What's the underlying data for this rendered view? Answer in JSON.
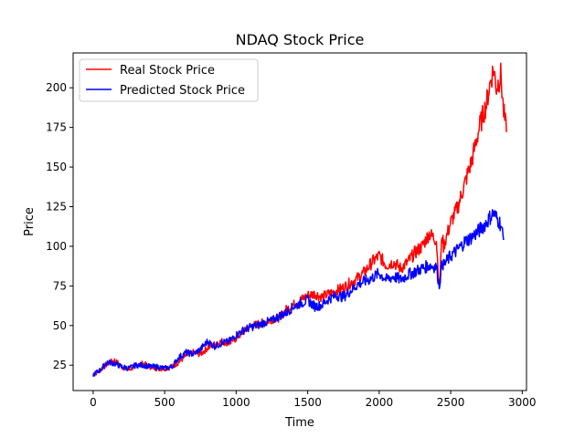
{
  "chart_data": {
    "type": "line",
    "title": "NDAQ Stock Price",
    "xlabel": "Time",
    "ylabel": "Price",
    "xlim": [
      -140,
      3030
    ],
    "ylim": [
      9,
      222
    ],
    "x_ticks": [
      0,
      500,
      1000,
      1500,
      2000,
      2500,
      3000
    ],
    "y_ticks": [
      25,
      50,
      75,
      100,
      125,
      150,
      175,
      200
    ],
    "grid": false,
    "legend_position": "top-left",
    "series": [
      {
        "name": "Real Stock Price",
        "color": "#ff0000",
        "x": [
          0,
          50,
          100,
          150,
          200,
          250,
          300,
          350,
          400,
          450,
          500,
          550,
          600,
          650,
          700,
          750,
          800,
          850,
          900,
          950,
          1000,
          1050,
          1100,
          1150,
          1200,
          1250,
          1300,
          1350,
          1400,
          1450,
          1500,
          1550,
          1600,
          1650,
          1700,
          1750,
          1800,
          1850,
          1900,
          1950,
          2000,
          2050,
          2100,
          2150,
          2200,
          2250,
          2300,
          2350,
          2400,
          2420,
          2440,
          2450,
          2500,
          2550,
          2600,
          2650,
          2700,
          2750,
          2780,
          2800,
          2820,
          2850,
          2870,
          2890
        ],
        "y": [
          19,
          22,
          26,
          28,
          24,
          22,
          25,
          26,
          24,
          23,
          23,
          24,
          27,
          31,
          33,
          32,
          36,
          38,
          40,
          39,
          42,
          46,
          49,
          51,
          52,
          54,
          55,
          60,
          63,
          66,
          69,
          70,
          68,
          70,
          72,
          74,
          77,
          80,
          84,
          90,
          94,
          88,
          90,
          86,
          90,
          96,
          100,
          108,
          104,
          73,
          108,
          100,
          115,
          125,
          140,
          155,
          175,
          190,
          205,
          212,
          200,
          208,
          185,
          172
        ]
      },
      {
        "name": "Predicted Stock Price",
        "color": "#0000ff",
        "x": [
          0,
          50,
          100,
          150,
          200,
          250,
          300,
          350,
          400,
          450,
          500,
          550,
          600,
          650,
          700,
          750,
          800,
          850,
          900,
          950,
          1000,
          1050,
          1100,
          1150,
          1200,
          1250,
          1300,
          1350,
          1400,
          1450,
          1500,
          1550,
          1600,
          1650,
          1700,
          1750,
          1800,
          1850,
          1900,
          1950,
          2000,
          2050,
          2100,
          2150,
          2200,
          2250,
          2300,
          2350,
          2400,
          2420,
          2440,
          2450,
          2500,
          2550,
          2600,
          2650,
          2700,
          2750,
          2780,
          2800,
          2820,
          2850,
          2870
        ],
        "y": [
          19,
          22,
          27,
          26,
          24,
          23,
          25,
          25,
          24,
          24,
          23,
          24,
          30,
          33,
          32,
          35,
          40,
          37,
          39,
          40,
          44,
          47,
          49,
          50,
          52,
          53,
          56,
          58,
          62,
          64,
          66,
          62,
          63,
          67,
          69,
          68,
          72,
          76,
          78,
          80,
          83,
          79,
          81,
          79,
          82,
          84,
          86,
          88,
          87,
          75,
          90,
          88,
          94,
          98,
          103,
          106,
          110,
          115,
          119,
          121,
          118,
          114,
          104
        ]
      }
    ]
  }
}
